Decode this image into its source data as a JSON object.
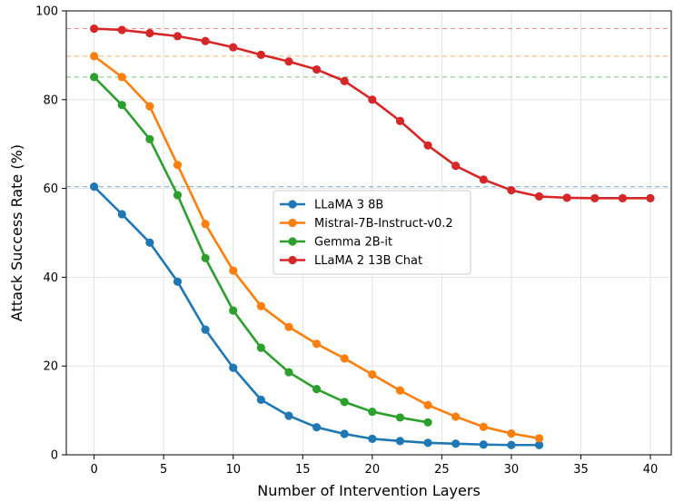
{
  "chart_data": {
    "type": "line",
    "title": "",
    "xlabel": "Number of Intervention Layers",
    "ylabel": "Attack Success Rate (%)",
    "xlim": [
      -2,
      41.5
    ],
    "ylim": [
      0,
      100
    ],
    "xticks": [
      0,
      5,
      10,
      15,
      20,
      25,
      30,
      35,
      40
    ],
    "yticks": [
      0,
      20,
      40,
      60,
      80,
      100
    ],
    "grid": true,
    "legend_position": "center",
    "series": [
      {
        "name": "LLaMA 3 8B",
        "color": "#1f77b4",
        "x": [
          0,
          2,
          4,
          6,
          8,
          10,
          12,
          14,
          16,
          18,
          20,
          22,
          24,
          26,
          28,
          30,
          32
        ],
        "y": [
          60.4,
          54.2,
          47.8,
          39.0,
          28.2,
          19.6,
          12.4,
          8.8,
          6.2,
          4.7,
          3.6,
          3.1,
          2.7,
          2.5,
          2.3,
          2.2,
          2.2
        ],
        "baseline": 60.4
      },
      {
        "name": "Mistral-7B-Instruct-v0.2",
        "color": "#ff7f0e",
        "x": [
          0,
          2,
          4,
          6,
          8,
          10,
          12,
          14,
          16,
          18,
          20,
          22,
          24,
          26,
          28,
          30,
          32
        ],
        "y": [
          89.8,
          85.1,
          78.5,
          65.3,
          52.0,
          41.5,
          33.5,
          28.8,
          25.0,
          21.7,
          18.1,
          14.5,
          11.2,
          8.6,
          6.3,
          4.8,
          3.7
        ],
        "baseline": 89.8
      },
      {
        "name": "Gemma 2B-it",
        "color": "#2ca02c",
        "x": [
          0,
          2,
          4,
          6,
          8,
          10,
          12,
          14,
          16,
          18,
          20,
          22,
          24
        ],
        "y": [
          85.1,
          78.8,
          71.1,
          58.5,
          44.3,
          32.5,
          24.1,
          18.6,
          14.8,
          11.9,
          9.7,
          8.4,
          7.3
        ],
        "baseline": 85.1
      },
      {
        "name": "LLaMA 2 13B Chat",
        "color": "#d62728",
        "x": [
          0,
          2,
          4,
          6,
          8,
          10,
          12,
          14,
          16,
          18,
          20,
          22,
          24,
          26,
          28,
          30,
          32,
          34,
          36,
          38,
          40
        ],
        "y": [
          96.0,
          95.7,
          95.0,
          94.3,
          93.2,
          91.8,
          90.1,
          88.6,
          86.8,
          84.2,
          80.0,
          75.2,
          69.7,
          65.1,
          62.0,
          59.6,
          58.2,
          57.9,
          57.8,
          57.8,
          57.8
        ],
        "baseline": 96.0
      }
    ]
  }
}
